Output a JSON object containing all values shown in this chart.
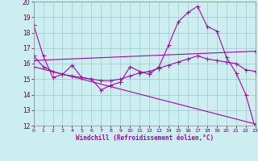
{
  "xlabel": "Windchill (Refroidissement éolien,°C)",
  "background_color": "#cceef0",
  "line_color": "#aa00aa",
  "grid_color": "#99cccc",
  "xmin": 0,
  "xmax": 23,
  "ymin": 12,
  "ymax": 20,
  "series1_x": [
    0,
    1,
    2,
    3,
    4,
    5,
    6,
    7,
    8,
    9,
    10,
    11,
    12,
    13,
    14,
    15,
    16,
    17,
    18,
    19,
    20,
    21,
    22,
    23
  ],
  "series1_y": [
    18.5,
    16.5,
    15.1,
    15.3,
    15.9,
    15.1,
    15.0,
    14.3,
    14.6,
    14.8,
    15.8,
    15.5,
    15.3,
    15.8,
    17.2,
    18.7,
    19.3,
    19.7,
    18.4,
    18.1,
    16.4,
    15.4,
    14.0,
    11.8
  ],
  "series2_x": [
    0,
    1,
    2,
    3,
    4,
    5,
    6,
    7,
    8,
    9,
    10,
    11,
    12,
    13,
    14,
    15,
    16,
    17,
    18,
    19,
    20,
    21,
    22,
    23
  ],
  "series2_y": [
    16.5,
    15.8,
    15.5,
    15.3,
    15.2,
    15.1,
    15.0,
    14.9,
    14.9,
    15.0,
    15.2,
    15.4,
    15.5,
    15.7,
    15.9,
    16.1,
    16.3,
    16.5,
    16.3,
    16.2,
    16.1,
    16.0,
    15.6,
    15.5
  ],
  "series3_x": [
    0,
    23
  ],
  "series3_y": [
    16.2,
    16.8
  ],
  "series4_x": [
    0,
    23
  ],
  "series4_y": [
    15.8,
    12.1
  ]
}
